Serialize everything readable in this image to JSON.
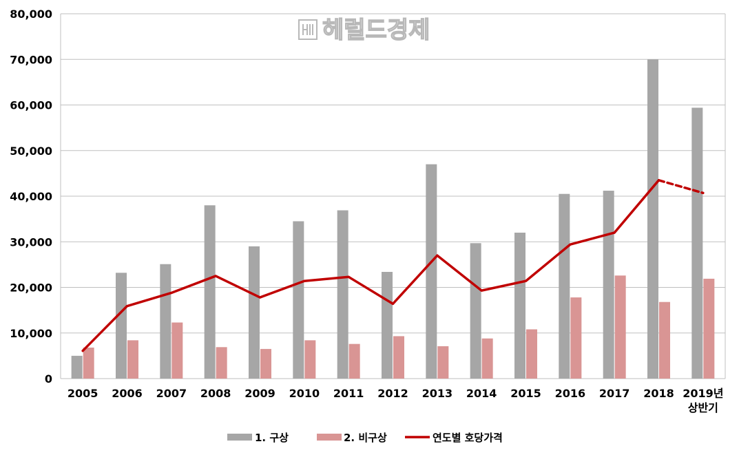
{
  "watermark": "헤럴드경제",
  "chart_data": {
    "type": "bar",
    "categories": [
      "2005",
      "2006",
      "2007",
      "2008",
      "2009",
      "2010",
      "2011",
      "2012",
      "2013",
      "2014",
      "2015",
      "2016",
      "2017",
      "2018",
      "2019년 상반기"
    ],
    "category_lines": [
      [
        "2005"
      ],
      [
        "2006"
      ],
      [
        "2007"
      ],
      [
        "2008"
      ],
      [
        "2009"
      ],
      [
        "2010"
      ],
      [
        "2011"
      ],
      [
        "2012"
      ],
      [
        "2013"
      ],
      [
        "2014"
      ],
      [
        "2015"
      ],
      [
        "2016"
      ],
      [
        "2017"
      ],
      [
        "2018"
      ],
      [
        "2019년",
        "상반기"
      ]
    ],
    "series": [
      {
        "name": "1. 구상",
        "type": "bar",
        "color": "#a6a6a6",
        "values": [
          5000,
          23200,
          25100,
          38000,
          29000,
          34500,
          36900,
          23400,
          47000,
          29700,
          32000,
          40500,
          41200,
          70000,
          59400
        ]
      },
      {
        "name": "2. 비구상",
        "type": "bar",
        "color": "#d99594",
        "values": [
          6800,
          8400,
          12300,
          6900,
          6500,
          8400,
          7600,
          9300,
          7100,
          8800,
          10800,
          17800,
          22600,
          16800,
          21900
        ]
      },
      {
        "name": "연도별 호당가격",
        "type": "line",
        "color": "#c00000",
        "values": [
          6100,
          15900,
          18800,
          22500,
          17800,
          21400,
          22300,
          16400,
          27000,
          19300,
          21400,
          29400,
          32000,
          43500,
          40700
        ],
        "dashed_last_segment": true
      }
    ],
    "ylim": [
      0,
      80000
    ],
    "yticks": [
      0,
      10000,
      20000,
      30000,
      40000,
      50000,
      60000,
      70000,
      80000
    ],
    "ytick_labels": [
      "0",
      "10,000",
      "20,000",
      "30,000",
      "40,000",
      "50,000",
      "60,000",
      "70,000",
      "80,000"
    ],
    "grid": true,
    "legend_position": "bottom"
  }
}
